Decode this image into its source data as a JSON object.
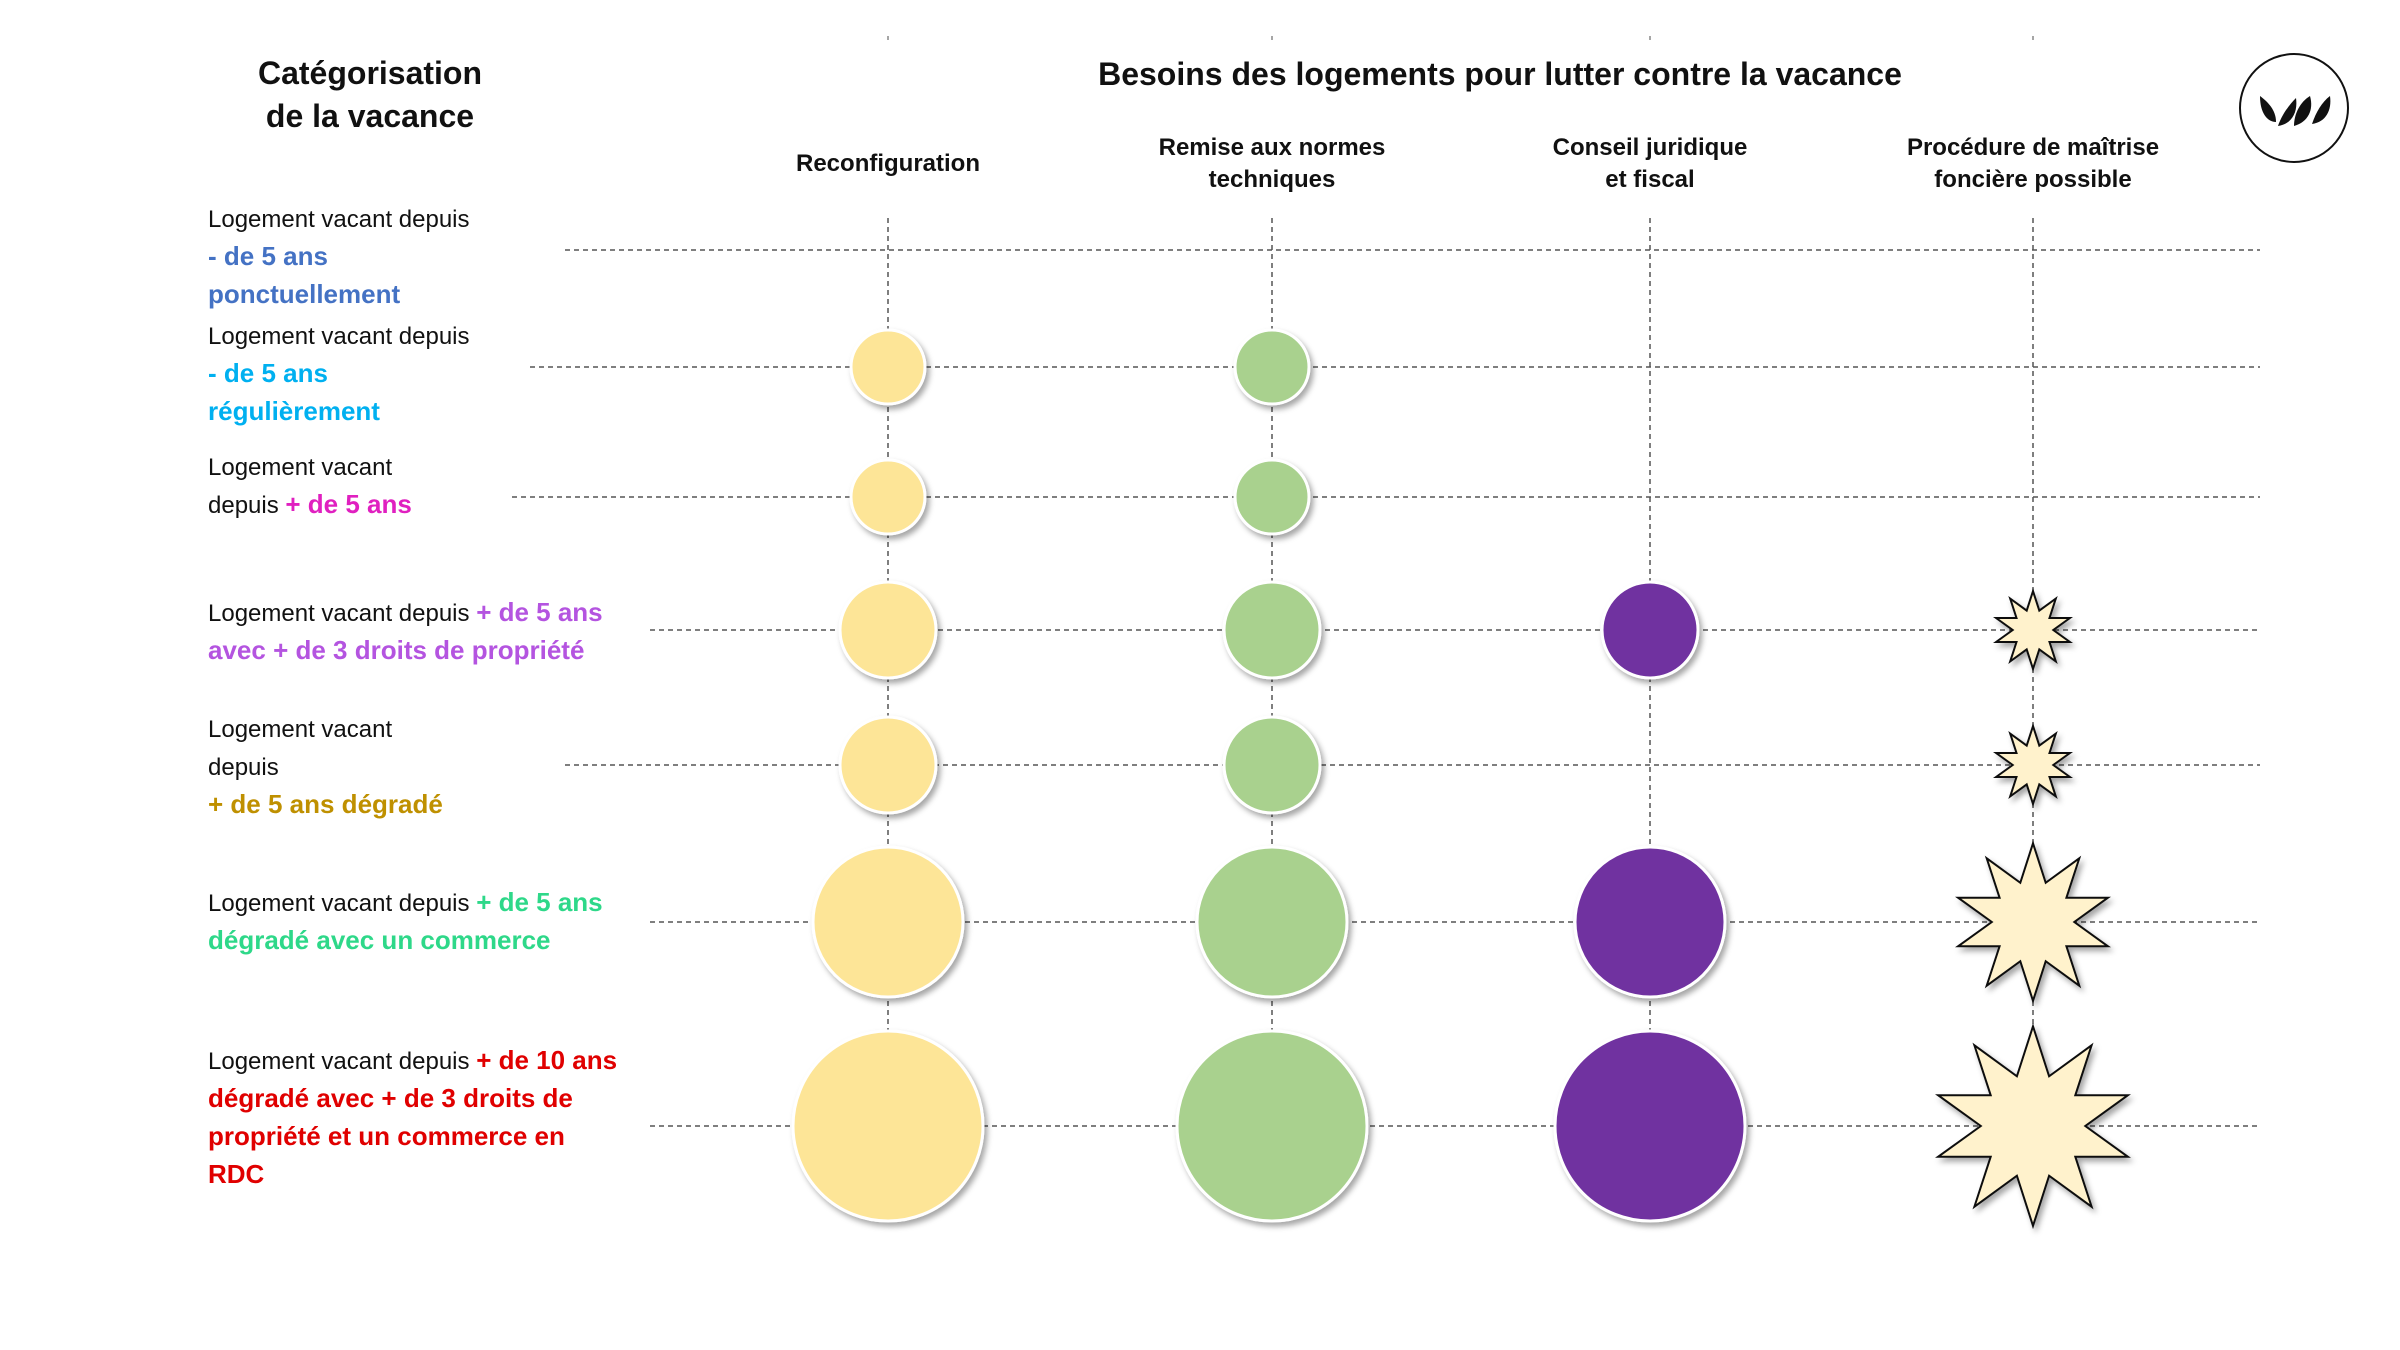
{
  "header": {
    "left_title": [
      "Catégorisation",
      "de la vacance"
    ],
    "main_title": "Besoins des logements pour lutter contre la vacance"
  },
  "columns": [
    {
      "label": [
        "Reconfiguration"
      ],
      "color": "#fde597"
    },
    {
      "label": [
        "Remise aux normes",
        "techniques"
      ],
      "color": "#a9d18e"
    },
    {
      "label": [
        "Conseil juridique",
        "et fiscal"
      ],
      "color": "#7030a0"
    },
    {
      "label": [
        "Procédure de maîtrise",
        "foncière possible"
      ],
      "color": "#fff2cc"
    }
  ],
  "rows": [
    {
      "lines": [
        [
          "Logement vacant depuis",
          ""
        ],
        [
          "",
          "- de 5 ans"
        ],
        [
          "",
          "ponctuellement"
        ]
      ],
      "accent": "#4472c4",
      "needs": [
        0,
        0,
        0,
        0
      ]
    },
    {
      "lines": [
        [
          "Logement vacant depuis",
          ""
        ],
        [
          "",
          "- de 5 ans"
        ],
        [
          "",
          "régulièrement"
        ]
      ],
      "accent": "#00b0f0",
      "needs": [
        1,
        1,
        0,
        0
      ]
    },
    {
      "lines": [
        [
          "Logement vacant",
          ""
        ],
        [
          "depuis ",
          "+ de 5 ans"
        ]
      ],
      "accent": "#e020c0",
      "needs": [
        1,
        1,
        0,
        0
      ]
    },
    {
      "lines": [
        [
          "Logement vacant depuis ",
          "+ de 5 ans"
        ],
        [
          "",
          "avec + de 3 droits de propriété"
        ]
      ],
      "accent": "#b454e0",
      "needs": [
        2,
        2,
        2,
        1
      ]
    },
    {
      "lines": [
        [
          "Logement vacant",
          ""
        ],
        [
          "depuis",
          ""
        ],
        [
          "",
          "+ de 5 ans dégradé"
        ]
      ],
      "accent": "#bf9000",
      "needs": [
        2,
        2,
        0,
        1
      ]
    },
    {
      "lines": [
        [
          "Logement vacant depuis ",
          "+ de 5 ans"
        ],
        [
          "",
          "dégradé avec un commerce"
        ]
      ],
      "accent": "#2ed889",
      "needs": [
        3,
        3,
        3,
        3
      ]
    },
    {
      "lines": [
        [
          "Logement vacant depuis ",
          "+ de 10 ans"
        ],
        [
          "",
          "dégradé avec + de 3 droits de"
        ],
        [
          "",
          "propriété et un commerce en"
        ],
        [
          "",
          "RDC"
        ]
      ],
      "accent": "#e00000",
      "needs": [
        4,
        4,
        4,
        4
      ]
    }
  ],
  "icons": {
    "logo": "leaves-logo-icon",
    "burst": "star-burst-icon"
  }
}
